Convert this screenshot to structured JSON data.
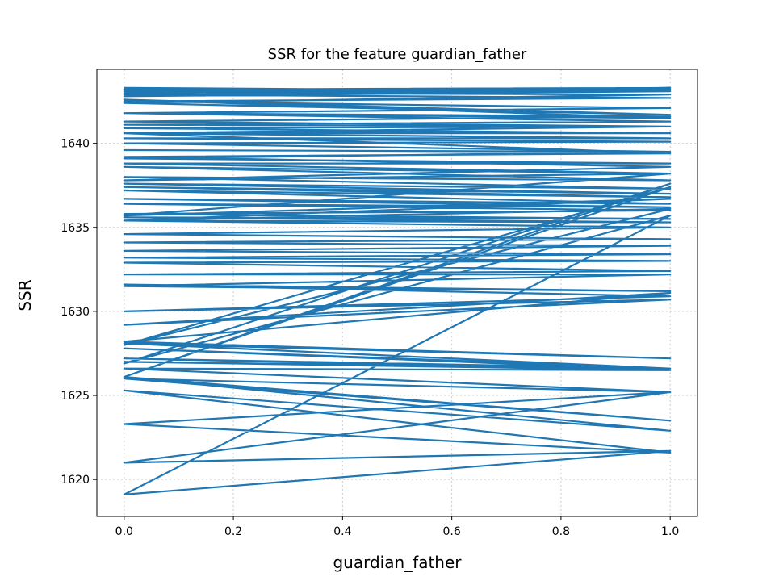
{
  "chart_data": {
    "type": "line",
    "title": "SSR for the feature guardian_father",
    "xlabel": "guardian_father",
    "ylabel": "SSR",
    "xlim": [
      -0.05,
      1.05
    ],
    "ylim": [
      1617.8,
      1644.4
    ],
    "xticks": [
      0.0,
      0.2,
      0.4,
      0.6,
      0.8,
      1.0
    ],
    "xtick_labels": [
      "0.0",
      "0.2",
      "0.4",
      "0.6",
      "0.8",
      "1.0"
    ],
    "yticks": [
      1620,
      1625,
      1630,
      1635,
      1640
    ],
    "ytick_labels": [
      "1620",
      "1625",
      "1630",
      "1635",
      "1640"
    ],
    "grid": true,
    "grid_style": "dotted",
    "line_color": "#1f77b4",
    "series": [
      {
        "x": [
          0,
          1,
          0,
          1,
          0,
          1,
          0,
          1,
          0,
          1,
          0,
          1,
          0,
          1,
          0,
          1,
          0,
          1,
          0,
          1,
          0,
          1,
          0,
          1,
          0,
          1,
          0,
          1,
          0,
          1,
          0,
          1,
          0,
          1,
          0,
          1,
          0,
          1,
          0,
          1,
          0,
          1,
          0,
          1,
          0,
          1,
          0,
          1,
          0,
          1,
          0,
          1,
          0,
          1,
          0,
          1,
          0,
          1,
          0,
          1,
          0,
          1,
          0,
          1,
          0,
          1,
          0,
          1,
          0,
          1,
          0,
          1,
          0,
          1,
          0,
          1,
          0,
          1,
          0,
          1,
          0,
          1,
          0,
          1,
          0,
          1,
          0,
          1,
          0,
          1,
          0,
          1,
          0,
          1,
          0,
          1,
          0,
          1,
          0,
          1,
          0,
          1,
          0,
          1,
          0,
          1,
          0,
          1,
          0,
          1,
          0,
          1,
          0,
          1,
          0,
          1,
          0,
          1,
          0,
          1
        ],
        "y": [
          1643.3,
          1643.1,
          1642.8,
          1643.3,
          1643.0,
          1642.9,
          1642.4,
          1641.7,
          1642.6,
          1641.5,
          1641.8,
          1641.3,
          1641.1,
          1641.0,
          1640.9,
          1640.6,
          1640.6,
          1640.3,
          1640.3,
          1640.1,
          1640.0,
          1639.5,
          1639.6,
          1639.5,
          1639.1,
          1638.8,
          1638.8,
          1638.2,
          1638.6,
          1637.8,
          1638.0,
          1637.3,
          1637.6,
          1637.0,
          1637.4,
          1636.8,
          1637.2,
          1636.4,
          1636.7,
          1636.2,
          1636.4,
          1636.0,
          1635.8,
          1635.5,
          1635.6,
          1635.3,
          1635.4,
          1635.0,
          1634.6,
          1634.3,
          1634.1,
          1633.9,
          1633.6,
          1633.4,
          1633.2,
          1633.0,
          1632.9,
          1632.4,
          1632.2,
          1632.2,
          1631.5,
          1631.2,
          1631.6,
          1630.9,
          1630.0,
          1630.7,
          1629.2,
          1631.1,
          1628.2,
          1627.2,
          1628.1,
          1626.6,
          1627.8,
          1626.5,
          1627.2,
          1626.6,
          1627.0,
          1626.5,
          1626.6,
          1625.2,
          1626.0,
          1623.5,
          1626.1,
          1622.9,
          1625.3,
          1621.6,
          1623.3,
          1625.2,
          1621.0,
          1621.7,
          1619.1,
          1635.7,
          1626.9,
          1637.6,
          1626.1,
          1637.4,
          1628.0,
          1636.1,
          1635.4,
          1636.7,
          1635.7,
          1638.2,
          1637.8,
          1638.6,
          1639.2,
          1639.4,
          1640.6,
          1641.0,
          1641.3,
          1641.6,
          1641.8,
          1642.1,
          1642.5,
          1642.7,
          1642.9,
          1643.2,
          1643.1,
          1643.3,
          1643.2,
          1643.1
        ]
      }
    ]
  }
}
